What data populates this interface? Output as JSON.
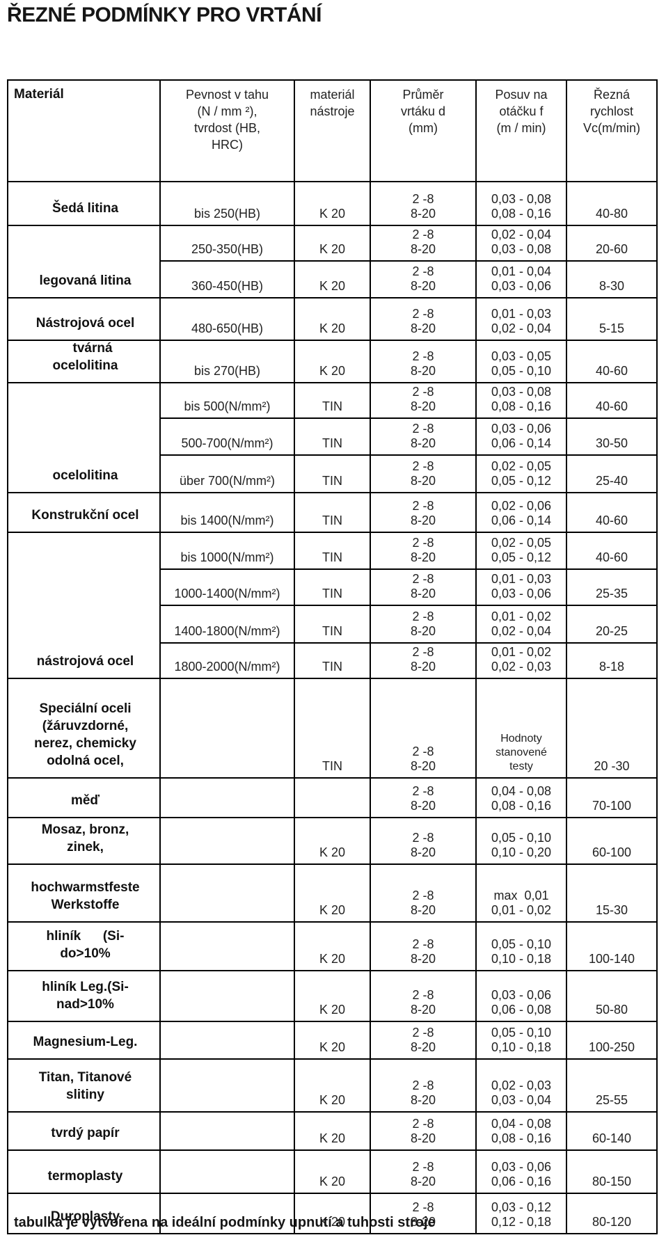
{
  "title": "ŘEZNÉ PODMÍNKY PRO VRTÁNÍ",
  "footer": "tabulka je vytvořena na ideální podmínky upnutí a tuhosti stroje",
  "table": {
    "headers": [
      {
        "id": "material",
        "lines": [
          "Materiál"
        ]
      },
      {
        "id": "strength",
        "lines": [
          "Pevnost v tahu",
          "(N / mm ²),",
          "tvrdost (HB,",
          "HRC)"
        ]
      },
      {
        "id": "tool",
        "lines": [
          "materiál",
          "nástroje"
        ]
      },
      {
        "id": "diameter",
        "lines": [
          "Průměr",
          "vrtáku d",
          "(mm)"
        ]
      },
      {
        "id": "feed",
        "lines": [
          "Posuv na",
          "otáčku f",
          "(m / min)"
        ]
      },
      {
        "id": "speed",
        "lines": [
          "Řezná",
          "rychlost",
          "Vc(m/min)"
        ]
      }
    ],
    "groups": [
      {
        "material": [
          "Šedá litina"
        ],
        "rows": [
          {
            "strength": "bis 250(HB)",
            "tool": "K 20",
            "d": [
              "2 -8",
              "8-20"
            ],
            "f": [
              "0,03 - 0,08",
              "0,08 - 0,16"
            ],
            "vc": "40-80"
          }
        ]
      },
      {
        "material": [
          "legovaná litina"
        ],
        "rows": [
          {
            "strength": "250-350(HB)",
            "tool": "K 20",
            "d": [
              "2 -8",
              "8-20"
            ],
            "f": [
              "0,02 - 0,04",
              "0,03 - 0,08"
            ],
            "vc": "20-60"
          },
          {
            "strength": "360-450(HB)",
            "tool": "K 20",
            "d": [
              "2 -8",
              "8-20"
            ],
            "f": [
              "0,01 - 0,04",
              "0,03 - 0,06"
            ],
            "vc": "8-30"
          }
        ]
      },
      {
        "material": [
          "Nástrojová ocel"
        ],
        "rows": [
          {
            "strength": "480-650(HB)",
            "tool": "K 20",
            "d": [
              "2 -8",
              "8-20"
            ],
            "f": [
              "0,01 - 0,03",
              "0,02 - 0,04"
            ],
            "vc": "5-15"
          }
        ]
      },
      {
        "material": [
          "    tvárná",
          "ocelolitina"
        ],
        "rows": [
          {
            "strength": "bis 270(HB)",
            "tool": "K 20",
            "d": [
              "2 -8",
              "8-20"
            ],
            "f": [
              "0,03 - 0,05",
              "0,05 - 0,10"
            ],
            "vc": "40-60"
          }
        ]
      },
      {
        "material": [
          "ocelolitina"
        ],
        "rows": [
          {
            "strength": "bis 500(N/mm²)",
            "tool": "TIN",
            "d": [
              "2 -8",
              "8-20"
            ],
            "f": [
              "0,03 - 0,08",
              "0,08 - 0,16"
            ],
            "vc": "40-60"
          },
          {
            "strength": "500-700(N/mm²)",
            "tool": "TIN",
            "d": [
              "2 -8",
              "8-20"
            ],
            "f": [
              "0,03 - 0,06",
              "0,06 - 0,14"
            ],
            "vc": "30-50"
          },
          {
            "strength": "über 700(N/mm²)",
            "tool": "TIN",
            "d": [
              "2 -8",
              "8-20"
            ],
            "f": [
              "0,02 - 0,05",
              "0,05 - 0,12"
            ],
            "vc": "25-40"
          }
        ]
      },
      {
        "material": [
          "Konstrukční ocel"
        ],
        "rows": [
          {
            "strength": "bis 1400(N/mm²)",
            "tool": "TIN",
            "d": [
              "2 -8",
              "8-20"
            ],
            "f": [
              "0,02 - 0,06",
              "0,06 - 0,14"
            ],
            "vc": "40-60"
          }
        ]
      },
      {
        "material": [
          "nástrojová ocel"
        ],
        "rows": [
          {
            "strength": "bis 1000(N/mm²)",
            "tool": "TIN",
            "d": [
              "2 -8",
              "8-20"
            ],
            "f": [
              "0,02 - 0,05",
              "0,05 - 0,12"
            ],
            "vc": "40-60"
          },
          {
            "strength": "1000-1400(N/mm²)",
            "tool": "TIN",
            "d": [
              "2 -8",
              "8-20"
            ],
            "f": [
              "0,01 - 0,03",
              "0,03 - 0,06"
            ],
            "vc": "25-35"
          },
          {
            "strength": "1400-1800(N/mm²)",
            "tool": "TIN",
            "d": [
              "2 -8",
              "8-20"
            ],
            "f": [
              "0,01 - 0,02",
              "0,02 - 0,04"
            ],
            "vc": "20-25"
          },
          {
            "strength": "1800-2000(N/mm²)",
            "tool": "TIN",
            "d": [
              "2 -8",
              "8-20"
            ],
            "f": [
              "0,01 - 0,02",
              "0,02 - 0,03"
            ],
            "vc": "8-18"
          }
        ]
      },
      {
        "material": [
          "Speciální oceli",
          "(žáruvzdorné,",
          "nerez, chemicky",
          "odolná ocel,"
        ],
        "rows": [
          {
            "strength": "",
            "tool": "TIN",
            "d": [
              "2 -8",
              "8-20"
            ],
            "f": [
              "Hodnoty",
              "stanovené",
              "testy"
            ],
            "f_small": true,
            "vc": "20 -30"
          }
        ]
      },
      {
        "material": [
          "měď"
        ],
        "rows": [
          {
            "strength": "",
            "tool": "",
            "d": [
              "2 -8",
              "8-20"
            ],
            "f": [
              "0,04 - 0,08",
              "0,08 - 0,16"
            ],
            "vc": "70-100"
          }
        ]
      },
      {
        "material": [
          "Mosaz, bronz,",
          "zinek,"
        ],
        "rows": [
          {
            "strength": "",
            "tool": "K 20",
            "d": [
              "2 -8",
              "8-20"
            ],
            "f": [
              "0,05 - 0,10",
              "0,10 - 0,20"
            ],
            "vc": "60-100"
          }
        ]
      },
      {
        "material": [
          "hochwarmstfeste",
          "Werkstoffe"
        ],
        "rows": [
          {
            "strength": "",
            "tool": "K 20",
            "d": [
              "2 -8",
              "8-20"
            ],
            "f": [
              "max  0,01",
              "0,01 - 0,02"
            ],
            "vc": "15-30"
          }
        ]
      },
      {
        "material": [
          "hliník      (Si-",
          "do>10%"
        ],
        "rows": [
          {
            "strength": "",
            "tool": "K 20",
            "d": [
              "2 -8",
              "8-20"
            ],
            "f": [
              "0,05 - 0,10",
              "0,10 - 0,18"
            ],
            "vc": "100-140"
          }
        ]
      },
      {
        "material": [
          "hliník Leg.(Si-",
          "nad>10%"
        ],
        "rows": [
          {
            "strength": "",
            "tool": "K 20",
            "d": [
              "2 -8",
              "8-20"
            ],
            "f": [
              "0,03 - 0,06",
              "0,06 - 0,08"
            ],
            "vc": "50-80"
          }
        ]
      },
      {
        "material": [
          "Magnesium-Leg."
        ],
        "rows": [
          {
            "strength": "",
            "tool": "K 20",
            "d": [
              "2 -8",
              "8-20"
            ],
            "f": [
              "0,05 - 0,10",
              "0,10 - 0,18"
            ],
            "vc": "100-250"
          }
        ]
      },
      {
        "material": [
          "Titan, Titanové",
          "slitiny"
        ],
        "rows": [
          {
            "strength": "",
            "tool": "K 20",
            "d": [
              "2 -8",
              "8-20"
            ],
            "f": [
              "0,02 - 0,03",
              "0,03 - 0,04"
            ],
            "vc": "25-55"
          }
        ]
      },
      {
        "material": [
          "tvrdý papír"
        ],
        "rows": [
          {
            "strength": "",
            "tool": "K 20",
            "d": [
              "2 -8",
              "8-20"
            ],
            "f": [
              "0,04 - 0,08",
              "0,08 - 0,16"
            ],
            "vc": "60-140"
          }
        ]
      },
      {
        "material": [
          "termoplasty"
        ],
        "rows": [
          {
            "strength": "",
            "tool": "K 20",
            "d": [
              "2 -8",
              "8-20"
            ],
            "f": [
              "0,03 - 0,06",
              "0,06 - 0,16"
            ],
            "vc": "80-150"
          }
        ]
      },
      {
        "material": [
          "Duroplasty"
        ],
        "rows": [
          {
            "strength": "",
            "tool": "K 20",
            "d": [
              "2 -8",
              "8-20"
            ],
            "f": [
              "0,03 - 0,12",
              "0,12 - 0,18"
            ],
            "vc": "80-120"
          }
        ]
      }
    ]
  }
}
